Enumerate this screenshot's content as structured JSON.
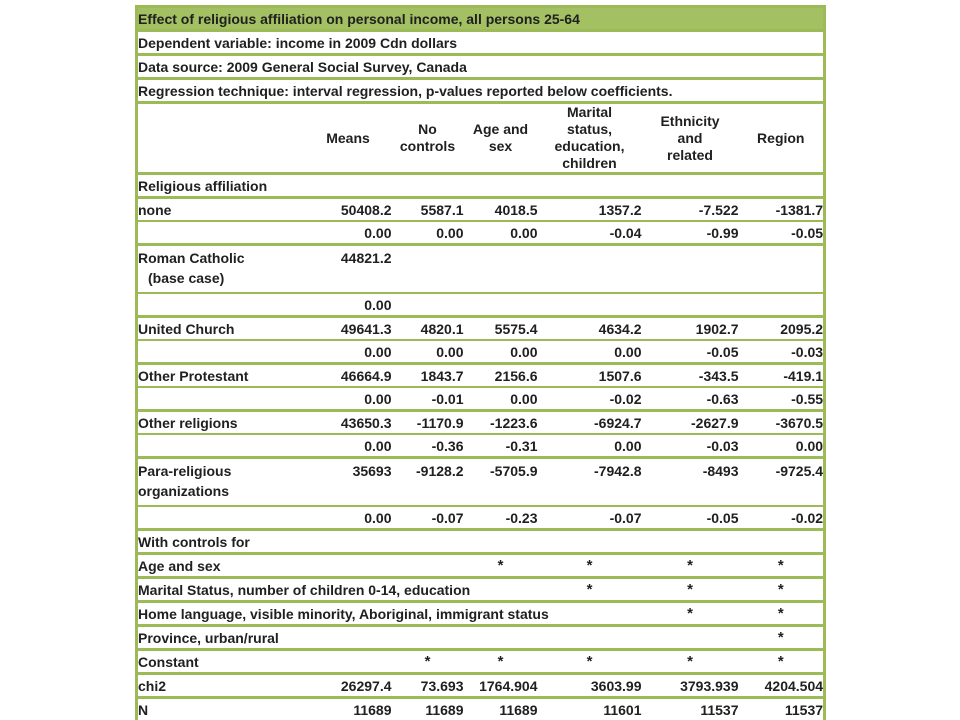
{
  "colors": {
    "table_green_fill": "#a3c162",
    "table_green_border": "#9cba58",
    "text": "#202020"
  },
  "table": {
    "title": "Effect of religious affiliation on personal income, all persons 25-64",
    "info_rows": [
      "Dependent variable: income in 2009 Cdn dollars",
      "Data source: 2009 General Social Survey, Canada",
      "Regression technique: interval regression, p-values reported below coefficients."
    ],
    "column_headers": [
      {
        "label": "Means",
        "lines": [
          "Means"
        ]
      },
      {
        "label": "No controls",
        "lines": [
          "No",
          "controls"
        ]
      },
      {
        "label": "Age and sex",
        "lines": [
          "Age and",
          "sex"
        ]
      },
      {
        "label": "Marital status, education, children",
        "lines": [
          "Marital",
          "status,",
          "education,",
          "children"
        ]
      },
      {
        "label": "Ethnicity and related",
        "lines": [
          "Ethnicity",
          "and",
          "related"
        ]
      },
      {
        "label": "Region",
        "lines": [
          "Region"
        ]
      }
    ],
    "rows": [
      {
        "type": "section",
        "label": "Religious affiliation"
      },
      {
        "type": "data",
        "label": "none",
        "cells": [
          "50408.2",
          "5587.1",
          "4018.5",
          "1357.2",
          "-7.522",
          "-1381.7"
        ]
      },
      {
        "type": "pvalues",
        "cells": [
          "0.00",
          "0.00",
          "0.00",
          "-0.04",
          "-0.99",
          "-0.05"
        ]
      },
      {
        "type": "data",
        "label": "Roman Catholic",
        "label2": "(base case)",
        "label2_indent": true,
        "cells": [
          "44821.2",
          "",
          "",
          "",
          "",
          ""
        ]
      },
      {
        "type": "pvalues",
        "cells": [
          "0.00",
          "",
          "",
          "",
          "",
          ""
        ]
      },
      {
        "type": "data",
        "label": "United Church",
        "cells": [
          "49641.3",
          "4820.1",
          "5575.4",
          "4634.2",
          "1902.7",
          "2095.2"
        ]
      },
      {
        "type": "pvalues",
        "cells": [
          "0.00",
          "0.00",
          "0.00",
          "0.00",
          "-0.05",
          "-0.03"
        ]
      },
      {
        "type": "data",
        "label": "Other Protestant",
        "cells": [
          "46664.9",
          "1843.7",
          "2156.6",
          "1507.6",
          "-343.5",
          "-419.1"
        ]
      },
      {
        "type": "pvalues",
        "cells": [
          "0.00",
          "-0.01",
          "0.00",
          "-0.02",
          "-0.63",
          "-0.55"
        ]
      },
      {
        "type": "data",
        "label": "Other religions",
        "cells": [
          "43650.3",
          "-1170.9",
          "-1223.6",
          "-6924.7",
          "-2627.9",
          "-3670.5"
        ]
      },
      {
        "type": "pvalues",
        "cells": [
          "0.00",
          "-0.36",
          "-0.31",
          "0.00",
          "-0.03",
          "0.00"
        ]
      },
      {
        "type": "data",
        "label": "Para-religious",
        "label2": "organizations",
        "label2_indent": false,
        "cells": [
          "35693",
          "-9128.2",
          "-5705.9",
          "-7942.8",
          "-8493",
          "-9725.4"
        ]
      },
      {
        "type": "pvalues",
        "cells": [
          "0.00",
          "-0.07",
          "-0.23",
          "-0.07",
          "-0.05",
          "-0.02"
        ]
      },
      {
        "type": "section",
        "label": "With controls for"
      },
      {
        "type": "stars",
        "label": "Age and sex",
        "cells": [
          "",
          "",
          "*",
          "*",
          "*",
          "*"
        ]
      },
      {
        "type": "stars",
        "label": "Marital Status, number of children 0-14, education",
        "cells": [
          "",
          "",
          "",
          "*",
          "*",
          "*"
        ]
      },
      {
        "type": "stars",
        "label": "Home language, visible minority, Aboriginal, immigrant status",
        "cells": [
          "",
          "",
          "",
          "",
          "*",
          "*"
        ]
      },
      {
        "type": "stars",
        "label": "Province, urban/rural",
        "cells": [
          "",
          "",
          "",
          "",
          "",
          "*"
        ]
      },
      {
        "type": "stars",
        "label": "Constant",
        "cells": [
          "",
          "*",
          "*",
          "*",
          "*",
          "*"
        ]
      },
      {
        "type": "data",
        "label": "chi2",
        "cells": [
          "26297.4",
          "73.693",
          "1764.904",
          "3603.99",
          "3793.939",
          "4204.504"
        ]
      },
      {
        "type": "data",
        "label": "N",
        "cells": [
          "11689",
          "11689",
          "11689",
          "11601",
          "11537",
          "11537"
        ]
      }
    ]
  }
}
